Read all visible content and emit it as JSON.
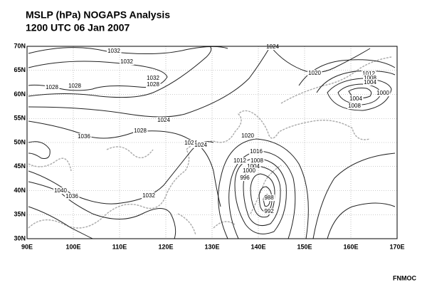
{
  "header": {
    "title": "MSLP (hPa) NOGAPS Analysis",
    "subtitle": "1200 UTC  06 Jan 2007"
  },
  "map": {
    "x_labels": [
      "90E",
      "100E",
      "110E",
      "120E",
      "130E",
      "140E",
      "150E",
      "160E",
      "170E"
    ],
    "y_labels": [
      "30N",
      "35N",
      "40N",
      "45N",
      "50N",
      "55N",
      "60N",
      "65N",
      "70N"
    ],
    "contour_labels": [
      "1032",
      "1032",
      "1032",
      "1028",
      "1028",
      "1028",
      "1024",
      "1028",
      "1036",
      "1024",
      "1024",
      "1020",
      "1016",
      "1012",
      "1008",
      "1004",
      "1000",
      "996",
      "988",
      "992",
      "1040",
      "1036",
      "1032",
      "1024",
      "1020",
      "1012",
      "1008",
      "1004",
      "1000",
      "1004",
      "1008"
    ]
  },
  "footer": {
    "credit": "FNMOC"
  }
}
